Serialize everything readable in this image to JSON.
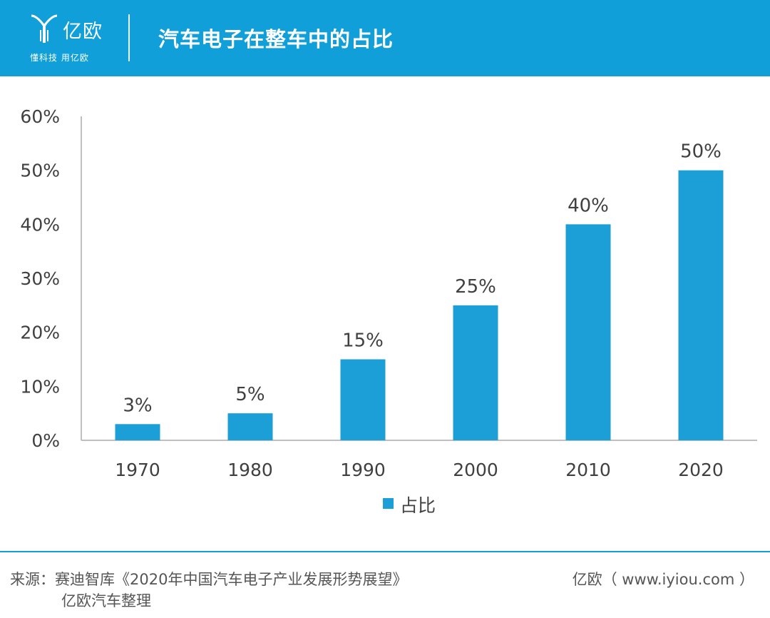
{
  "header": {
    "logo_name": "亿欧",
    "logo_slogan": "懂科技 用亿欧",
    "title": "汽车电子在整车中的占比"
  },
  "colors": {
    "brand": "#109fd8",
    "bar": "#1c9fd6",
    "axis": "#bfbfbf",
    "text": "#404040"
  },
  "chart_data": {
    "type": "bar",
    "title": "汽车电子在整车中的占比",
    "categories": [
      "1970",
      "1980",
      "1990",
      "2000",
      "2010",
      "2020"
    ],
    "series": [
      {
        "name": "占比",
        "values": [
          3,
          5,
          15,
          25,
          40,
          50
        ]
      }
    ],
    "data_labels": [
      "3%",
      "5%",
      "15%",
      "25%",
      "40%",
      "50%"
    ],
    "y_ticks": [
      "0%",
      "10%",
      "20%",
      "30%",
      "40%",
      "50%",
      "60%"
    ],
    "ylim": [
      0,
      60
    ],
    "xlabel": "",
    "ylabel": "",
    "grid": false,
    "legend": "bottom-center"
  },
  "footer": {
    "source_line1": "来源：赛迪智库《2020年中国汽车电子产业发展形势展望》",
    "source_line2": "亿欧汽车整理",
    "site": "亿欧（ www.iyiou.com ）"
  }
}
